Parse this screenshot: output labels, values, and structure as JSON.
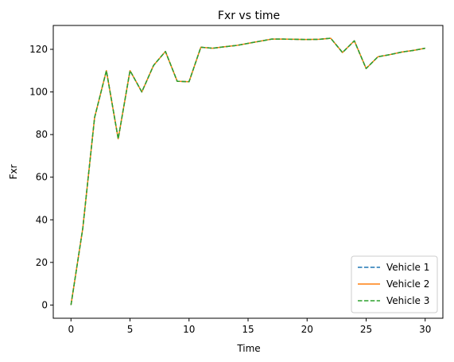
{
  "chart_data": {
    "type": "line",
    "title": "Fxr vs time",
    "xlabel": "Time",
    "ylabel": "Fxr",
    "xlim": [
      -1.5,
      31.5
    ],
    "ylim": [
      -6.2,
      131.2
    ],
    "xticks": [
      0,
      5,
      10,
      15,
      20,
      25,
      30
    ],
    "yticks": [
      0,
      20,
      40,
      60,
      80,
      100,
      120
    ],
    "grid": false,
    "legend_position": "lower right",
    "x": [
      0,
      1,
      2,
      3,
      4,
      5,
      6,
      7,
      8,
      9,
      10,
      11,
      12,
      13,
      14,
      15,
      16,
      17,
      18,
      19,
      20,
      21,
      22,
      23,
      24,
      25,
      26,
      27,
      28,
      29,
      30
    ],
    "series": [
      {
        "name": "Vehicle 1",
        "color": "#1f77b4",
        "style": "dashed",
        "values": [
          0,
          36,
          88,
          110,
          78,
          110,
          100,
          112.5,
          119,
          105,
          104.8,
          121,
          120.5,
          121.2,
          121.8,
          122.8,
          123.8,
          124.8,
          124.8,
          124.7,
          124.6,
          124.7,
          125.2,
          118.5,
          124,
          111,
          116.5,
          117.5,
          118.7,
          119.5,
          120.5
        ]
      },
      {
        "name": "Vehicle 2",
        "color": "#ff7f0e",
        "style": "solid",
        "values": [
          0,
          36,
          88,
          110,
          78,
          110,
          100,
          112.5,
          119,
          105,
          104.8,
          121,
          120.5,
          121.2,
          121.8,
          122.8,
          123.8,
          124.8,
          124.8,
          124.7,
          124.6,
          124.7,
          125.2,
          118.5,
          124,
          111,
          116.5,
          117.5,
          118.7,
          119.5,
          120.5
        ]
      },
      {
        "name": "Vehicle 3",
        "color": "#2ca02c",
        "style": "dashed",
        "values": [
          0,
          36,
          88,
          110,
          78,
          110,
          100,
          112.5,
          119,
          105,
          104.8,
          121,
          120.5,
          121.2,
          121.8,
          122.8,
          123.8,
          124.8,
          124.8,
          124.7,
          124.6,
          124.7,
          125.2,
          118.5,
          124,
          111,
          116.5,
          117.5,
          118.7,
          119.5,
          120.5
        ]
      }
    ]
  }
}
